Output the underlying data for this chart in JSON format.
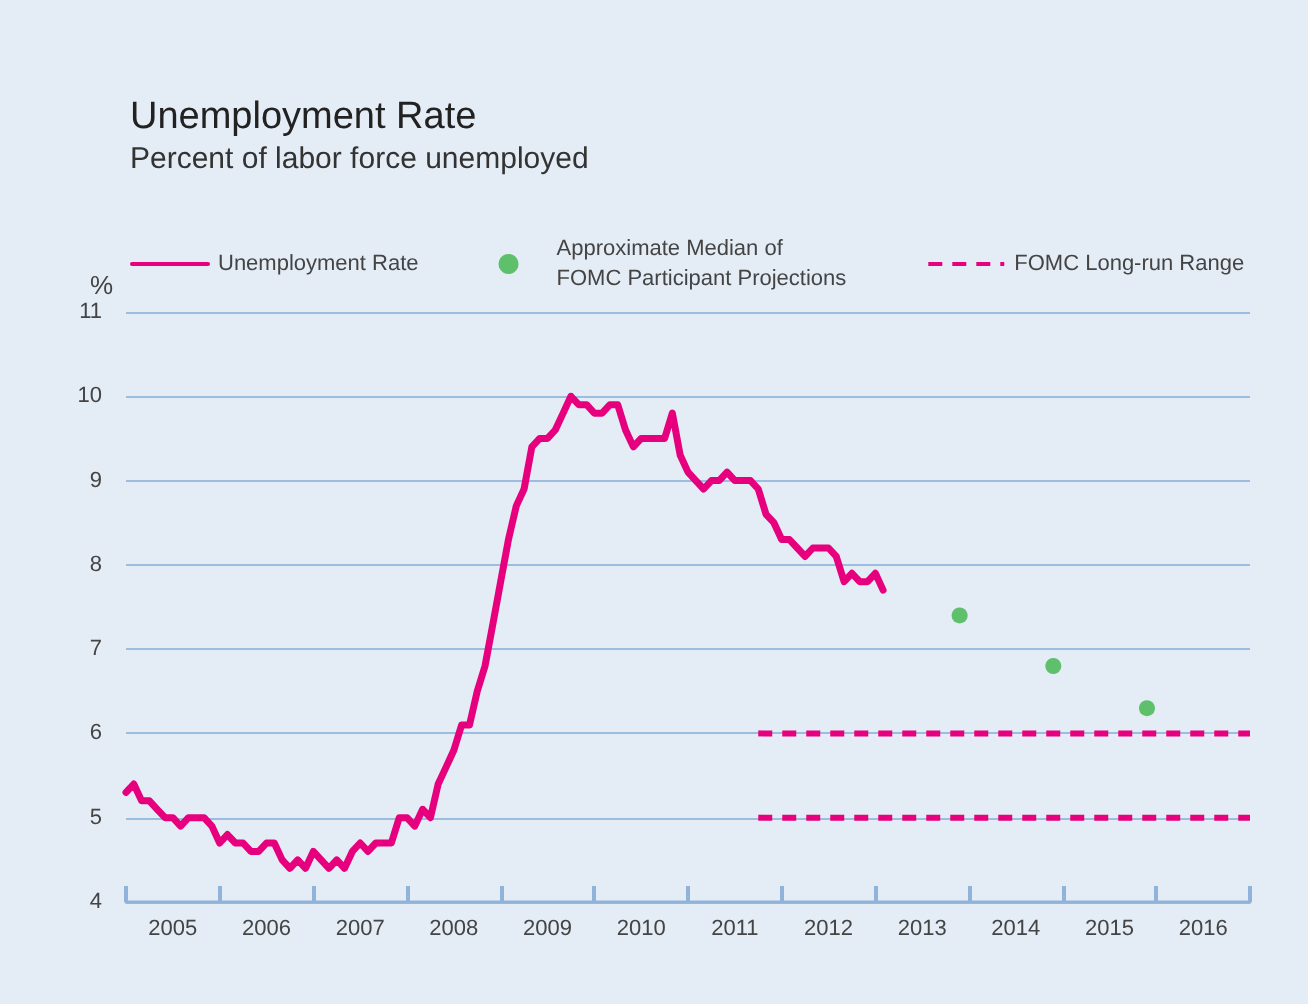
{
  "chart_data": {
    "type": "line",
    "title": "Unemployment Rate",
    "subtitle": "Percent of labor force unemployed",
    "ylabel": "%",
    "xlim": [
      2005,
      2017
    ],
    "xticks": [
      {
        "value": 2005,
        "label": null
      },
      {
        "value": 2005.5,
        "label": "2005"
      },
      {
        "value": 2006,
        "label": null
      },
      {
        "value": 2006.5,
        "label": "2006"
      },
      {
        "value": 2007,
        "label": null
      },
      {
        "value": 2007.5,
        "label": "2007"
      },
      {
        "value": 2008,
        "label": null
      },
      {
        "value": 2008.5,
        "label": "2008"
      },
      {
        "value": 2009,
        "label": null
      },
      {
        "value": 2009.5,
        "label": "2009"
      },
      {
        "value": 2010,
        "label": null
      },
      {
        "value": 2010.5,
        "label": "2010"
      },
      {
        "value": 2011,
        "label": null
      },
      {
        "value": 2011.5,
        "label": "2011"
      },
      {
        "value": 2012,
        "label": null
      },
      {
        "value": 2012.5,
        "label": "2012"
      },
      {
        "value": 2013,
        "label": null
      },
      {
        "value": 2013.5,
        "label": "2013"
      },
      {
        "value": 2014,
        "label": null
      },
      {
        "value": 2014.5,
        "label": "2014"
      },
      {
        "value": 2015,
        "label": null
      },
      {
        "value": 2015.5,
        "label": "2015"
      },
      {
        "value": 2016,
        "label": null
      },
      {
        "value": 2016.5,
        "label": "2016"
      },
      {
        "value": 2017,
        "label": null
      }
    ],
    "ylim": [
      4,
      11
    ],
    "yticks": [
      4,
      5,
      6,
      7,
      8,
      9,
      10,
      11
    ],
    "grid": "y",
    "legend": "top",
    "series": [
      {
        "name": "Unemployment Rate",
        "color": "#e6007e",
        "marker": "none",
        "line_style": "solid",
        "x": [
          2005.0,
          2005.083,
          2005.167,
          2005.25,
          2005.333,
          2005.417,
          2005.5,
          2005.583,
          2005.667,
          2005.75,
          2005.833,
          2005.917,
          2006.0,
          2006.083,
          2006.167,
          2006.25,
          2006.333,
          2006.417,
          2006.5,
          2006.583,
          2006.667,
          2006.75,
          2006.833,
          2006.917,
          2007.0,
          2007.083,
          2007.167,
          2007.25,
          2007.333,
          2007.417,
          2007.5,
          2007.583,
          2007.667,
          2007.75,
          2007.833,
          2007.917,
          2008.0,
          2008.083,
          2008.167,
          2008.25,
          2008.333,
          2008.417,
          2008.5,
          2008.583,
          2008.667,
          2008.75,
          2008.833,
          2008.917,
          2009.0,
          2009.083,
          2009.167,
          2009.25,
          2009.333,
          2009.417,
          2009.5,
          2009.583,
          2009.667,
          2009.75,
          2009.833,
          2009.917,
          2010.0,
          2010.083,
          2010.167,
          2010.25,
          2010.333,
          2010.417,
          2010.5,
          2010.583,
          2010.667,
          2010.75,
          2010.833,
          2010.917,
          2011.0,
          2011.083,
          2011.167,
          2011.25,
          2011.333,
          2011.417,
          2011.5,
          2011.583,
          2011.667,
          2011.75,
          2011.833,
          2011.917,
          2012.0,
          2012.083,
          2012.167,
          2012.25,
          2012.333,
          2012.417,
          2012.5,
          2012.583,
          2012.667,
          2012.75,
          2012.833,
          2012.917,
          2013.0,
          2013.083
        ],
        "values": [
          5.3,
          5.4,
          5.2,
          5.2,
          5.1,
          5.0,
          5.0,
          4.9,
          5.0,
          5.0,
          5.0,
          4.9,
          4.7,
          4.8,
          4.7,
          4.7,
          4.6,
          4.6,
          4.7,
          4.7,
          4.5,
          4.4,
          4.5,
          4.4,
          4.6,
          4.5,
          4.4,
          4.5,
          4.4,
          4.6,
          4.7,
          4.6,
          4.7,
          4.7,
          4.7,
          5.0,
          5.0,
          4.9,
          5.1,
          5.0,
          5.4,
          5.6,
          5.8,
          6.1,
          6.1,
          6.5,
          6.8,
          7.3,
          7.8,
          8.3,
          8.7,
          8.9,
          9.4,
          9.5,
          9.5,
          9.6,
          9.8,
          10.0,
          9.9,
          9.9,
          9.8,
          9.8,
          9.9,
          9.9,
          9.6,
          9.4,
          9.5,
          9.5,
          9.5,
          9.5,
          9.8,
          9.3,
          9.1,
          9.0,
          8.9,
          9.0,
          9.0,
          9.1,
          9.0,
          9.0,
          9.0,
          8.9,
          8.6,
          8.5,
          8.3,
          8.3,
          8.2,
          8.1,
          8.2,
          8.2,
          8.2,
          8.1,
          7.8,
          7.9,
          7.8,
          7.8,
          7.9,
          7.7
        ]
      },
      {
        "name": "Approximate Median of\nFOMC Participant Projections",
        "type": "scatter",
        "color": "#3db54a",
        "marker": "circle",
        "x": [
          2013.9,
          2014.9,
          2015.9
        ],
        "values": [
          7.4,
          6.8,
          6.3
        ]
      },
      {
        "name": "FOMC Long-run Range",
        "color": "#e6007e",
        "marker": "none",
        "line_style": "dashed",
        "x": [
          2011.75,
          2017
        ],
        "values": [
          6,
          6
        ]
      },
      {
        "color": "#e6007e",
        "marker": "none",
        "line_style": "dashed",
        "x": [
          2011.75,
          2017
        ],
        "values": [
          5,
          5
        ]
      }
    ]
  }
}
